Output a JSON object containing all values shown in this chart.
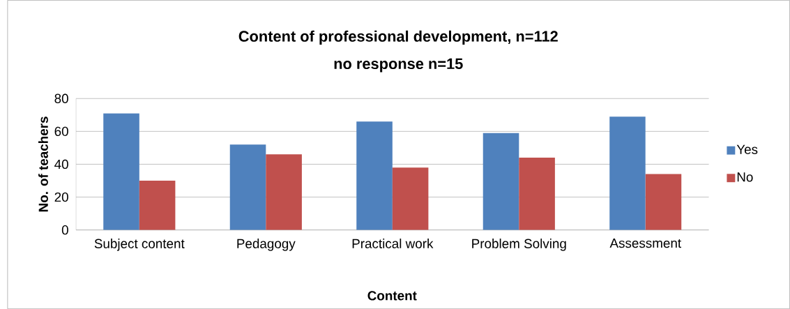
{
  "chart_data": {
    "type": "bar",
    "title": "Content of professional development, n=112",
    "subtitle": "no response n=15",
    "xlabel": "Content",
    "ylabel": "No. of teachers",
    "categories": [
      "Subject content",
      "Pedagogy",
      "Practical work",
      "Problem Solving",
      "Assessment"
    ],
    "series": [
      {
        "name": "Yes",
        "color": "#4f81bd",
        "values": [
          71,
          52,
          66,
          59,
          69
        ]
      },
      {
        "name": "No",
        "color": "#c0504d",
        "values": [
          30,
          46,
          38,
          44,
          34
        ]
      }
    ],
    "ylim": [
      0,
      80
    ],
    "yticks": [
      0,
      20,
      40,
      60,
      80
    ],
    "grid": "y",
    "legend": "right"
  }
}
